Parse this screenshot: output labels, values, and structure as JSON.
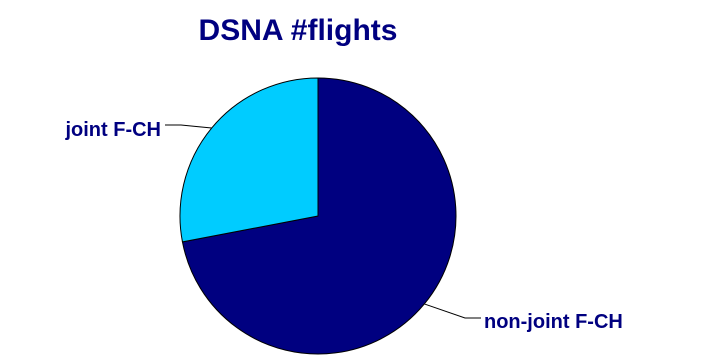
{
  "chart_data": {
    "type": "pie",
    "title": "DSNA #flights",
    "labels": [
      "non-joint F-CH",
      "joint F-CH"
    ],
    "values": [
      72,
      28
    ],
    "start_angle_deg": 0,
    "direction": "clockwise",
    "colors": {
      "slices": [
        "#000080",
        "#00CCFF"
      ],
      "title": "#000080",
      "labels": "#000080",
      "outline": "#000000",
      "leader": "#000000"
    },
    "legend": "none"
  }
}
